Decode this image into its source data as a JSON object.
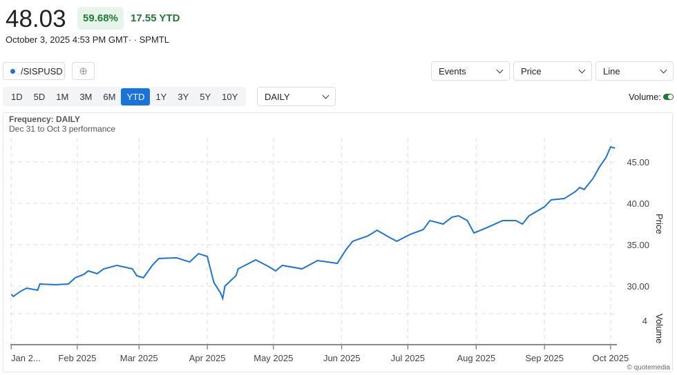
{
  "header": {
    "price": "48.03",
    "change_pct": "59.68%",
    "change_ytd": "17.55 YTD",
    "timestamp": "October 3, 2025 4:53 PM GMT· · SPMTL"
  },
  "symbol": {
    "label": "/SISPUSD",
    "color": "#1a73d9"
  },
  "add_icon": "plus-circle-icon",
  "ranges": [
    "1D",
    "5D",
    "1M",
    "3M",
    "6M",
    "YTD",
    "1Y",
    "3Y",
    "5Y",
    "10Y"
  ],
  "selected_range": "YTD",
  "frequency_select": "DAILY",
  "events_select": "Events",
  "price_select": "Price",
  "type_select": "Line",
  "volume_label": "Volume:",
  "volume_on": true,
  "colors": {
    "accent": "#1a73d9",
    "positive": "#1e7b34"
  },
  "chart_data": {
    "type": "line",
    "subtitle_freq": "Frequency: DAILY",
    "subtitle_perf": "Dec 31 to Oct 3 performance",
    "ylabel": "Price",
    "volume_label": "Volume",
    "y_ticks": [
      "30.00",
      "35.00",
      "40.00",
      "45.00"
    ],
    "volume_tick": "4",
    "ylim": [
      26.5,
      48
    ],
    "x_ticks": [
      "Jan 2...",
      "Feb 2025",
      "Mar 2025",
      "Apr 2025",
      "May 2025",
      "Jun 2025",
      "Jul 2025",
      "Aug 2025",
      "Sep 2025",
      "Oct 2025"
    ],
    "grid": true,
    "credit": "© quotemedia",
    "series": [
      {
        "x": [
          "2025-01-02",
          "2025-01-03",
          "2025-01-06",
          "2025-01-09",
          "2025-01-14",
          "2025-01-15",
          "2025-01-22",
          "2025-01-28",
          "2025-01-31",
          "2025-02-04",
          "2025-02-06",
          "2025-02-10",
          "2025-02-13",
          "2025-02-19",
          "2025-02-26",
          "2025-02-28",
          "2025-03-03",
          "2025-03-07",
          "2025-03-10",
          "2025-03-18",
          "2025-03-24",
          "2025-03-28",
          "2025-04-01",
          "2025-04-02",
          "2025-04-04",
          "2025-04-07",
          "2025-04-08",
          "2025-04-09",
          "2025-04-14",
          "2025-04-15",
          "2025-04-23",
          "2025-04-29",
          "2025-05-02",
          "2025-05-05",
          "2025-05-14",
          "2025-05-21",
          "2025-05-30",
          "2025-06-03",
          "2025-06-06",
          "2025-06-13",
          "2025-06-17",
          "2025-06-23",
          "2025-06-26",
          "2025-07-02",
          "2025-07-08",
          "2025-07-11",
          "2025-07-17",
          "2025-07-21",
          "2025-07-24",
          "2025-07-28",
          "2025-07-31",
          "2025-08-06",
          "2025-08-13",
          "2025-08-19",
          "2025-08-22",
          "2025-08-25",
          "2025-09-01",
          "2025-09-04",
          "2025-09-10",
          "2025-09-15",
          "2025-09-17",
          "2025-09-19",
          "2025-09-23",
          "2025-09-26",
          "2025-09-29",
          "2025-10-01",
          "2025-10-03"
        ],
        "y": [
          29.0,
          28.75,
          29.33,
          29.75,
          29.5,
          30.25,
          30.17,
          30.25,
          31.0,
          31.42,
          31.83,
          31.5,
          32.08,
          32.5,
          32.08,
          31.25,
          31.0,
          32.5,
          33.33,
          33.42,
          32.92,
          33.92,
          33.58,
          32.5,
          30.42,
          29.17,
          28.5,
          30.0,
          31.25,
          32.08,
          33.17,
          32.33,
          31.83,
          32.5,
          32.08,
          33.08,
          32.75,
          34.42,
          35.42,
          36.08,
          36.75,
          35.83,
          35.42,
          36.25,
          36.83,
          37.92,
          37.5,
          38.33,
          38.5,
          37.92,
          36.42,
          37.08,
          37.92,
          37.92,
          37.5,
          38.5,
          39.58,
          40.42,
          40.58,
          41.42,
          41.92,
          41.67,
          43.0,
          44.42,
          45.58,
          46.83,
          46.67
        ]
      }
    ]
  }
}
